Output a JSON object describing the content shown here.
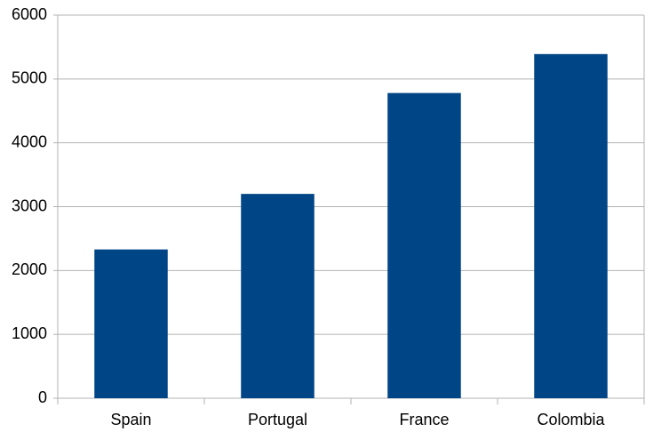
{
  "chart_data": {
    "type": "bar",
    "categories": [
      "Spain",
      "Portugal",
      "France",
      "Colombia"
    ],
    "values": [
      2330,
      3200,
      4780,
      5390
    ],
    "color": "#004586",
    "ylim": [
      0,
      6000
    ],
    "yticks": [
      0,
      1000,
      2000,
      3000,
      4000,
      5000,
      6000
    ],
    "grid": true
  }
}
